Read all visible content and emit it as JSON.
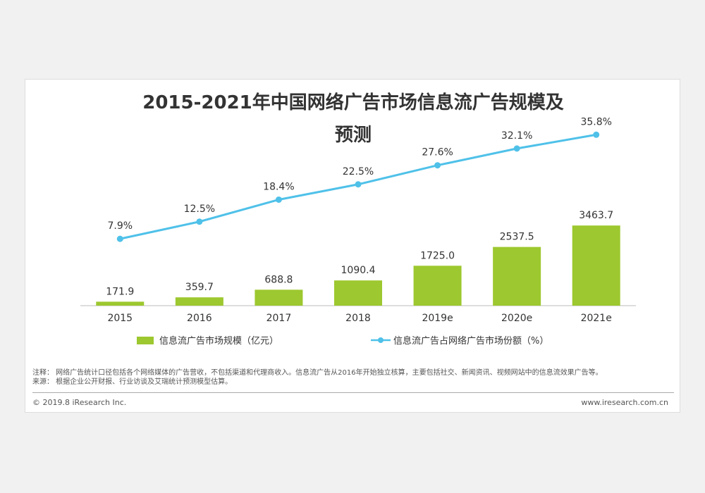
{
  "chart_data": {
    "type": "bar",
    "title": "2015-2021年中国网络广告市场信息流广告规模及预测",
    "categories": [
      "2015",
      "2016",
      "2017",
      "2018",
      "2019e",
      "2020e",
      "2021e"
    ],
    "series": [
      {
        "name": "信息流广告市场规模（亿元）",
        "type": "bar",
        "axis": "left",
        "values": [
          171.9,
          359.7,
          688.8,
          1090.4,
          1725.0,
          2537.5,
          3463.7
        ],
        "labels": [
          "171.9",
          "359.7",
          "688.8",
          "1090.4",
          "1725.0",
          "2537.5",
          "3463.7"
        ]
      },
      {
        "name": "信息流广告占网络广告市场份额（%）",
        "type": "line",
        "axis": "right",
        "values": [
          7.9,
          12.5,
          18.4,
          22.5,
          27.6,
          32.1,
          35.8
        ],
        "labels": [
          "7.9%",
          "12.5%",
          "18.4%",
          "22.5%",
          "27.6%",
          "32.1%",
          "35.8%"
        ]
      }
    ],
    "bar_ylim": [
      0,
      3500
    ],
    "line_ylim": [
      0,
      50
    ],
    "grid": false,
    "legend_position": "bottom",
    "colors": {
      "bar": "#9dc82f",
      "line": "#4fc1e9"
    }
  },
  "title_lines": [
    "2015-2021年中国网络广告市场信息流广告规模及",
    "预测"
  ],
  "notes": {
    "note": "注释：   网络广告统计口径包括各个网络媒体的广告营收，不包括渠道和代理商收入。信息流广告从2016年开始独立核算，主要包括社交、新闻资讯、视频网站中的信息流效果广告等。",
    "source": "来源：   根据企业公开财报、行业访谈及艾瑞统计预测模型估算。"
  },
  "footer": {
    "copyright": "© 2019.8 iResearch Inc.",
    "website": "www.iresearch.com.cn"
  }
}
